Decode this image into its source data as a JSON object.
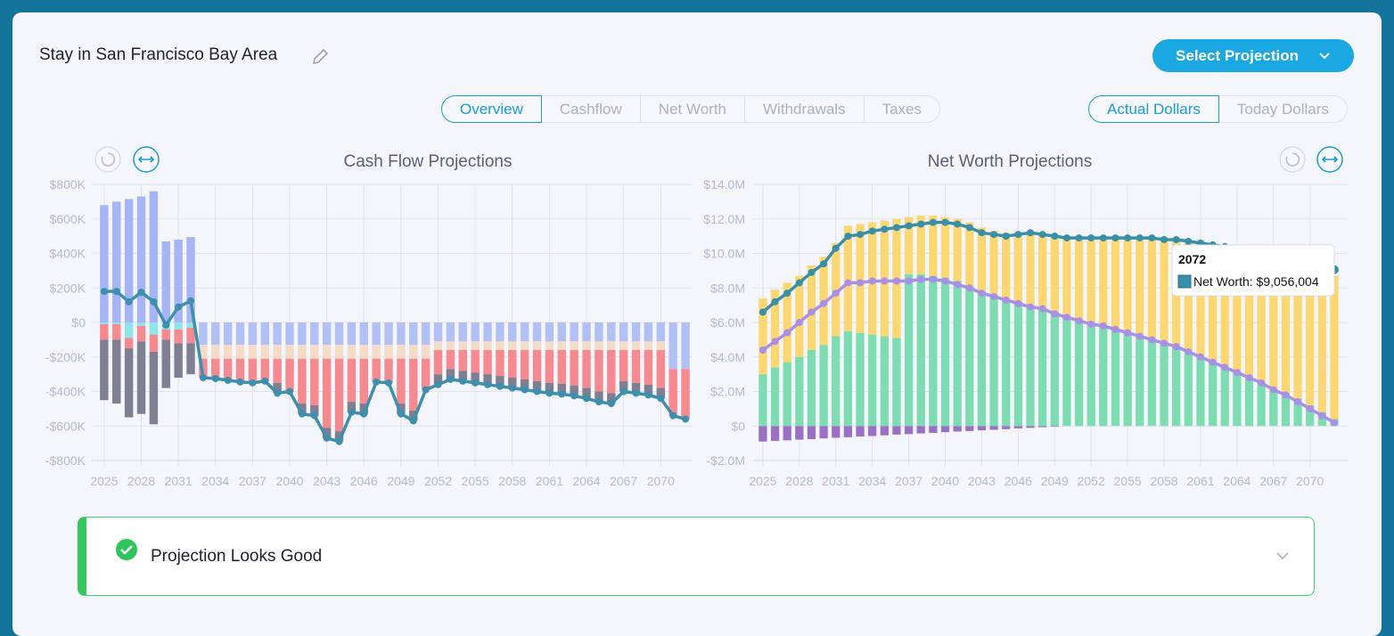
{
  "header": {
    "title": "Stay in San Francisco Bay Area",
    "button": "Select Projection"
  },
  "tabs": [
    "Overview",
    "Cashflow",
    "Net Worth",
    "Withdrawals",
    "Taxes"
  ],
  "active_tab": 0,
  "dollar_modes": [
    "Actual Dollars",
    "Today Dollars"
  ],
  "active_dollar_mode": 0,
  "chart_data": [
    {
      "type": "bar",
      "stacked": true,
      "title": "Cash Flow Projections",
      "grid": true,
      "x": [
        2025,
        2026,
        2027,
        2028,
        2029,
        2030,
        2031,
        2032,
        2033,
        2034,
        2035,
        2036,
        2037,
        2038,
        2039,
        2040,
        2041,
        2042,
        2043,
        2044,
        2045,
        2046,
        2047,
        2048,
        2049,
        2050,
        2051,
        2052,
        2053,
        2054,
        2055,
        2056,
        2057,
        2058,
        2059,
        2060,
        2061,
        2062,
        2063,
        2064,
        2065,
        2066,
        2067,
        2068,
        2069,
        2070,
        2071,
        2072
      ],
      "xlim": [
        2024,
        2072.5
      ],
      "xticks": [
        2025,
        2028,
        2031,
        2034,
        2037,
        2040,
        2043,
        2046,
        2049,
        2052,
        2055,
        2058,
        2061,
        2064,
        2067,
        2070
      ],
      "ylim": [
        -800000,
        800000
      ],
      "yticks": [
        {
          "value": -800000,
          "label": "-$800K"
        },
        {
          "value": -600000,
          "label": "-$600K"
        },
        {
          "value": -400000,
          "label": "-$400K"
        },
        {
          "value": -200000,
          "label": "-$200K"
        },
        {
          "value": 0,
          "label": "$0"
        },
        {
          "value": 200000,
          "label": "$200K"
        },
        {
          "value": 400000,
          "label": "$400K"
        },
        {
          "value": 600000,
          "label": "$600K"
        },
        {
          "value": 800000,
          "label": "$800K"
        }
      ],
      "series": [
        {
          "color": "#a7b5f6",
          "values": [
            680000.0,
            700000.0,
            715000.0,
            730000.0,
            760000.0,
            470000.0,
            480000.0,
            495000.0,
            0,
            0,
            0,
            0,
            0,
            0,
            0,
            0,
            0,
            0,
            0,
            0,
            0,
            0,
            0,
            0,
            0,
            0,
            0,
            0,
            0,
            0,
            0,
            0,
            0,
            0,
            0,
            0,
            0,
            0,
            0,
            0,
            0,
            0,
            0,
            0,
            0,
            0,
            0,
            0
          ]
        },
        {
          "color": "#b3c0f5",
          "values": [
            0,
            0,
            0,
            0,
            0,
            0,
            0,
            0,
            -130000.0,
            -130000.0,
            -130000.0,
            -130000.0,
            -130000.0,
            -130000.0,
            -130000.0,
            -130000.0,
            -130000.0,
            -130000.0,
            -130000.0,
            -130000.0,
            -130000.0,
            -130000.0,
            -130000.0,
            -130000.0,
            -130000.0,
            -130000.0,
            -130000.0,
            -110000.0,
            -110000.0,
            -110000.0,
            -110000.0,
            -110000.0,
            -110000.0,
            -110000.0,
            -110000.0,
            -110000.0,
            -110000.0,
            -110000.0,
            -110000.0,
            -110000.0,
            -110000.0,
            -110000.0,
            -110000.0,
            -110000.0,
            -110000.0,
            -110000.0,
            -270000.0,
            -270000.0
          ]
        },
        {
          "color": "#8fe6ea",
          "values": [
            -10000.0,
            -10000.0,
            -90000.0,
            -20000.0,
            -70000.0,
            -40000.0,
            -40000.0,
            -30000.0,
            0,
            0,
            0,
            0,
            0,
            0,
            0,
            0,
            0,
            0,
            0,
            0,
            0,
            0,
            0,
            0,
            0,
            0,
            0,
            0,
            0,
            0,
            0,
            0,
            0,
            0,
            0,
            0,
            0,
            0,
            0,
            0,
            0,
            0,
            0,
            0,
            0,
            0,
            0,
            0
          ]
        },
        {
          "color": "#f4dcc8",
          "values": [
            0,
            0,
            0,
            0,
            0,
            0,
            0,
            0,
            -80000.0,
            -80000.0,
            -80000.0,
            -80000.0,
            -80000.0,
            -80000.0,
            -80000.0,
            -80000.0,
            -80000.0,
            -80000.0,
            -80000.0,
            -80000.0,
            -80000.0,
            -80000.0,
            -80000.0,
            -80000.0,
            -80000.0,
            -80000.0,
            -80000.0,
            -50000.0,
            -50000.0,
            -50000.0,
            -50000.0,
            -50000.0,
            -50000.0,
            -50000.0,
            -50000.0,
            -50000.0,
            -50000.0,
            -50000.0,
            -50000.0,
            -50000.0,
            -50000.0,
            -50000.0,
            -50000.0,
            -50000.0,
            -50000.0,
            -50000.0,
            0,
            0
          ]
        },
        {
          "color": "#f68a90",
          "values": [
            -90000.0,
            -90000.0,
            -60000.0,
            -90000.0,
            -100000.0,
            -60000.0,
            -80000.0,
            -90000.0,
            -110000.0,
            -115000.0,
            -125000.0,
            -135000.0,
            -140000.0,
            -130000.0,
            -140000.0,
            -190000.0,
            -260000.0,
            -270000.0,
            -400000.0,
            -420000.0,
            -250000.0,
            -260000.0,
            -135000.0,
            -140000.0,
            -260000.0,
            -300000.0,
            -180000.0,
            -140000.0,
            -110000.0,
            -120000.0,
            -130000.0,
            -140000.0,
            -150000.0,
            -160000.0,
            -170000.0,
            -180000.0,
            -190000.0,
            -195000.0,
            -205000.0,
            -220000.0,
            -240000.0,
            -250000.0,
            -180000.0,
            -190000.0,
            -200000.0,
            -220000.0,
            -270000.0,
            -290000.0
          ]
        },
        {
          "color": "#7e8092",
          "values": [
            -350000.0,
            -370000.0,
            -400000.0,
            -420000.0,
            -420000.0,
            -280000.0,
            -200000.0,
            -180000.0,
            0,
            0,
            0,
            0,
            0,
            0,
            -60000.0,
            0,
            -60000.0,
            -60000.0,
            -60000.0,
            -60000.0,
            -60000.0,
            -60000.0,
            0,
            0,
            -60000.0,
            -60000.0,
            0,
            -60000.0,
            -60000.0,
            -60000.0,
            -60000.0,
            -60000.0,
            -60000.0,
            -60000.0,
            -60000.0,
            -60000.0,
            -60000.0,
            -60000.0,
            -60000.0,
            -60000.0,
            -60000.0,
            -60000.0,
            -60000.0,
            -60000.0,
            -60000.0,
            -60000.0,
            0,
            0
          ]
        },
        {
          "type": "line",
          "color": "#3d8fad",
          "values": [
            180000.0,
            180000.0,
            120000.0,
            175000.0,
            120000.0,
            -15000.0,
            90000.0,
            125000.0,
            -320000.0,
            -325000.0,
            -335000.0,
            -345000.0,
            -350000.0,
            -340000.0,
            -410000.0,
            -400000.0,
            -530000.0,
            -540000.0,
            -670000.0,
            -690000.0,
            -520000.0,
            -530000.0,
            -345000.0,
            -350000.0,
            -530000.0,
            -570000.0,
            -390000.0,
            -360000.0,
            -330000.0,
            -340000.0,
            -350000.0,
            -360000.0,
            -370000.0,
            -380000.0,
            -390000.0,
            -400000.0,
            -410000.0,
            -415000.0,
            -425000.0,
            -440000.0,
            -460000.0,
            -470000.0,
            -400000.0,
            -410000.0,
            -420000.0,
            -440000.0,
            -540000.0,
            -560000.0
          ]
        }
      ]
    },
    {
      "type": "bar",
      "stacked": true,
      "title": "Net Worth Projections",
      "grid": true,
      "x": [
        2025,
        2026,
        2027,
        2028,
        2029,
        2030,
        2031,
        2032,
        2033,
        2034,
        2035,
        2036,
        2037,
        2038,
        2039,
        2040,
        2041,
        2042,
        2043,
        2044,
        2045,
        2046,
        2047,
        2048,
        2049,
        2050,
        2051,
        2052,
        2053,
        2054,
        2055,
        2056,
        2057,
        2058,
        2059,
        2060,
        2061,
        2062,
        2063,
        2064,
        2065,
        2066,
        2067,
        2068,
        2069,
        2070,
        2071,
        2072
      ],
      "xlim": [
        2024.2,
        2073.1
      ],
      "xticks": [
        2025,
        2028,
        2031,
        2034,
        2037,
        2040,
        2043,
        2046,
        2049,
        2052,
        2055,
        2058,
        2061,
        2064,
        2067,
        2070
      ],
      "ylim": [
        -2000000,
        14000000
      ],
      "yticks": [
        {
          "value": -2000000,
          "label": "-$2.0M"
        },
        {
          "value": 0,
          "label": "$0"
        },
        {
          "value": 2000000,
          "label": "$2.0M"
        },
        {
          "value": 4000000,
          "label": "$4.0M"
        },
        {
          "value": 6000000,
          "label": "$6.0M"
        },
        {
          "value": 8000000,
          "label": "$8.0M"
        },
        {
          "value": 10000000,
          "label": "$10.0M"
        },
        {
          "value": 12000000,
          "label": "$12.0M"
        },
        {
          "value": 14000000,
          "label": "$14.0M"
        }
      ],
      "series": [
        {
          "color": "#9b6fc6",
          "values": [
            -900000.0,
            -860000.0,
            -830000.0,
            -790000.0,
            -760000.0,
            -720000.0,
            -680000.0,
            -650000.0,
            -610000.0,
            -580000.0,
            -540000.0,
            -500000.0,
            -470000.0,
            -430000.0,
            -400000.0,
            -360000.0,
            -320000.0,
            -290000.0,
            -250000.0,
            -220000.0,
            -180000.0,
            -140000.0,
            -110000.0,
            -70000.0,
            -40000.0,
            0,
            0,
            0,
            0,
            0,
            0,
            0,
            0,
            0,
            0,
            0,
            0,
            0,
            0,
            0,
            0,
            0,
            0,
            0,
            0,
            0,
            0,
            0
          ]
        },
        {
          "color": "#7edcb2",
          "values": [
            3000000.0,
            3400000.0,
            3700000.0,
            4000000.0,
            4400000.0,
            4700000.0,
            5200000.0,
            5500000.0,
            5400000.0,
            5300000.0,
            5200000.0,
            5100000.0,
            8800000.0,
            8800000.0,
            8700000.0,
            8600000.0,
            8400000.0,
            8100000.0,
            7800000.0,
            7600000.0,
            7400000.0,
            7200000.0,
            7000000.0,
            6800000.0,
            6600000.0,
            6400000.0,
            6200000.0,
            6000000.0,
            5800000.0,
            5600000.0,
            5400000.0,
            5200000.0,
            5000000.0,
            4800000.0,
            4600000.0,
            4300000.0,
            4000000.0,
            3700000.0,
            3400000.0,
            3100000.0,
            2800000.0,
            2500000.0,
            2200000.0,
            1900000.0,
            1600000.0,
            1200000.0,
            800000.0,
            400000.0
          ]
        },
        {
          "color": "#fdd771",
          "values": [
            4400000.0,
            4500000.0,
            4600000.0,
            4700000.0,
            4900000.0,
            5100000.0,
            5400000.0,
            6100000.0,
            6300000.0,
            6500000.0,
            6700000.0,
            6900000.0,
            3300000.0,
            3400000.0,
            3500000.0,
            3500000.0,
            3600000.0,
            3700000.0,
            3700000.0,
            3700000.0,
            3800000.0,
            4000000.0,
            4200000.0,
            4300000.0,
            4400000.0,
            4600000.0,
            4800000.0,
            5000000.0,
            5200000.0,
            5400000.0,
            5600000.0,
            5700000.0,
            5900000.0,
            6000000.0,
            6100000.0,
            6300000.0,
            6500000.0,
            6700000.0,
            6900000.0,
            7100000.0,
            7300000.0,
            7500000.0,
            7700000.0,
            7900000.0,
            8000000.0,
            8300000.0,
            8500000.0,
            8700000.0
          ]
        },
        {
          "type": "line",
          "color": "#a88fe8",
          "values": [
            4400000.0,
            4900000.0,
            5400000.0,
            6000000.0,
            6600000.0,
            7100000.0,
            7700000.0,
            8300000.0,
            8300000.0,
            8400000.0,
            8400000.0,
            8400000.0,
            8400000.0,
            8500000.0,
            8500000.0,
            8400000.0,
            8200000.0,
            8000000.0,
            7700000.0,
            7500000.0,
            7300000.0,
            7100000.0,
            6900000.0,
            6800000.0,
            6500000.0,
            6300000.0,
            6100000.0,
            5900000.0,
            5800000.0,
            5600000.0,
            5400000.0,
            5200000.0,
            5000000.0,
            4800000.0,
            4600000.0,
            4300000.0,
            4000000.0,
            3700000.0,
            3400000.0,
            3100000.0,
            2800000.0,
            2500000.0,
            2100000.0,
            1800000.0,
            1400000.0,
            1000000.0,
            600000.0,
            200000.0
          ]
        },
        {
          "type": "line",
          "color": "#3a8fa8",
          "values": [
            6600000.0,
            7200000.0,
            7700000.0,
            8300000.0,
            8900000.0,
            9400000.0,
            10300000.0,
            11000000.0,
            11100000.0,
            11300000.0,
            11400000.0,
            11500000.0,
            11600000.0,
            11700000.0,
            11800000.0,
            11800000.0,
            11700000.0,
            11500000.0,
            11200000.0,
            11100000.0,
            11000000.0,
            11100000.0,
            11200000.0,
            11100000.0,
            11000000.0,
            10900000.0,
            10900000.0,
            10900000.0,
            10900000.0,
            10900000.0,
            10900000.0,
            10900000.0,
            10900000.0,
            10800000.0,
            10800000.0,
            10700000.0,
            10600000.0,
            10500000.0,
            10400000.0,
            10200000.0,
            10000000.0,
            9900000.0,
            9800000.0,
            9700000.0,
            9500000.0,
            9400000.0,
            9300000.0,
            9056004
          ]
        }
      ],
      "tooltip": {
        "title": "2072",
        "text": "Net Worth: $9,056,004"
      }
    }
  ],
  "status": {
    "text": "Projection Looks Good"
  }
}
